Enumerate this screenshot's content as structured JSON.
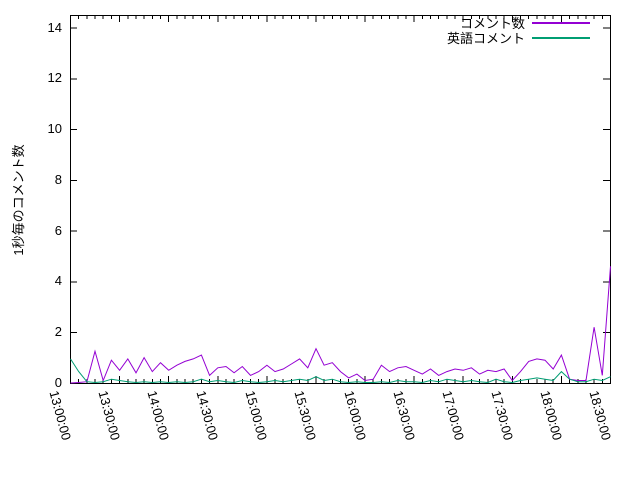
{
  "chart_data": {
    "type": "line",
    "title": "",
    "ylabel": "1秒毎のコメント数",
    "xlabel": "",
    "background_color": "#ffffff",
    "axis_color": "#000000",
    "grid": false,
    "legend_position": "top-right",
    "ylim": [
      0,
      14.5
    ],
    "yticks": [
      0,
      2,
      4,
      6,
      8,
      10,
      12,
      14
    ],
    "xticks": [
      "13:00:00",
      "13:30:00",
      "14:00:00",
      "14:30:00",
      "15:00:00",
      "15:30:00",
      "16:00:00",
      "16:30:00",
      "17:00:00",
      "17:30:00",
      "18:00:00",
      "18:30:00"
    ],
    "x_start": "13:00:00",
    "x_end": "18:30:00",
    "x_step_minutes": 5,
    "series": [
      {
        "name": "コメント数",
        "color": "#9400d3",
        "values": [
          0,
          0.02,
          0.05,
          1.25,
          0.1,
          0.9,
          0.5,
          0.95,
          0.4,
          1.0,
          0.45,
          0.8,
          0.5,
          0.7,
          0.85,
          0.95,
          1.1,
          0.3,
          0.6,
          0.65,
          0.4,
          0.65,
          0.3,
          0.45,
          0.7,
          0.45,
          0.55,
          0.75,
          0.95,
          0.6,
          1.35,
          0.7,
          0.8,
          0.45,
          0.2,
          0.35,
          0.1,
          0.15,
          0.7,
          0.45,
          0.6,
          0.65,
          0.5,
          0.35,
          0.55,
          0.3,
          0.45,
          0.55,
          0.5,
          0.6,
          0.35,
          0.5,
          0.45,
          0.55,
          0.1,
          0.45,
          0.85,
          0.95,
          0.9,
          0.55,
          1.1,
          0.15,
          0.1,
          0.1,
          2.2,
          0.3,
          4.6
        ]
      },
      {
        "name": "英語コメント",
        "color": "#009e73",
        "values": [
          0.95,
          0.45,
          0.05,
          0.02,
          0.05,
          0.15,
          0.1,
          0.05,
          0.02,
          0.05,
          0.02,
          0.05,
          0.02,
          0.05,
          0.02,
          0.05,
          0.15,
          0.05,
          0.1,
          0.05,
          0.02,
          0.1,
          0.05,
          0.02,
          0.05,
          0.1,
          0.05,
          0.1,
          0.15,
          0.1,
          0.25,
          0.1,
          0.15,
          0.05,
          0.02,
          0.05,
          0.02,
          0.02,
          0.05,
          0.02,
          0.1,
          0.05,
          0.05,
          0.02,
          0.1,
          0.05,
          0.15,
          0.1,
          0.05,
          0.1,
          0.05,
          0.02,
          0.15,
          0.05,
          0.02,
          0.1,
          0.15,
          0.2,
          0.15,
          0.1,
          0.45,
          0.15,
          0.05,
          0.05,
          0.15,
          0.1,
          0.25
        ]
      }
    ]
  }
}
